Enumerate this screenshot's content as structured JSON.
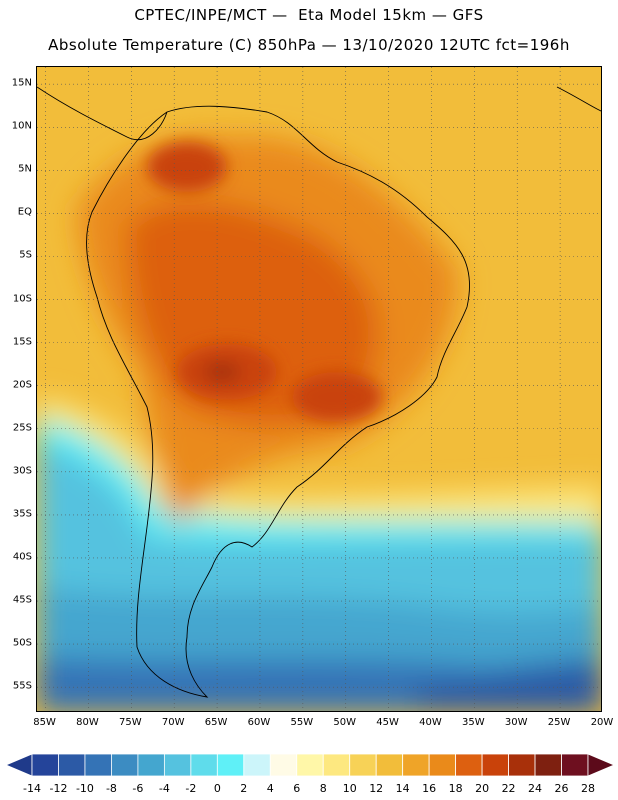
{
  "header": {
    "title_line1": "CPTEC/INPE/MCT —  Eta Model 15km — GFS",
    "title_line2": "Absolute Temperature (C) 850hPa — 13/10/2020 12UTC fct=196h"
  },
  "map": {
    "lat_labels": [
      "15N",
      "10N",
      "5N",
      "EQ",
      "5S",
      "10S",
      "15S",
      "20S",
      "25S",
      "30S",
      "35S",
      "40S",
      "45S",
      "50S",
      "55S"
    ],
    "lat_values": [
      15,
      10,
      5,
      0,
      -5,
      -10,
      -15,
      -20,
      -25,
      -30,
      -35,
      -40,
      -45,
      -50,
      -55
    ],
    "lon_labels": [
      "85W",
      "80W",
      "75W",
      "70W",
      "65W",
      "60W",
      "55W",
      "50W",
      "45W",
      "40W",
      "35W",
      "30W",
      "25W",
      "20W"
    ],
    "lon_values": [
      -85,
      -80,
      -75,
      -70,
      -65,
      -60,
      -55,
      -50,
      -45,
      -40,
      -35,
      -30,
      -25,
      -20
    ],
    "lon_range": [
      -86,
      -20
    ],
    "lat_range": [
      -58,
      17
    ],
    "gridlines": "dotted"
  },
  "colorbar": {
    "labels": [
      "-14",
      "-12",
      "-10",
      "-8",
      "-6",
      "-4",
      "-2",
      "0",
      "2",
      "4",
      "6",
      "8",
      "10",
      "12",
      "14",
      "16",
      "18",
      "20",
      "22",
      "24",
      "26",
      "28"
    ],
    "values": [
      -14,
      -12,
      -10,
      -8,
      -6,
      -4,
      -2,
      0,
      2,
      4,
      6,
      8,
      10,
      12,
      14,
      16,
      18,
      20,
      22,
      24,
      26,
      28
    ],
    "colors": [
      "#2b4a9a",
      "#24449a",
      "#2c5aa6",
      "#3473b6",
      "#3c8cc2",
      "#44a6cf",
      "#55c2df",
      "#5fdceb",
      "#5ff0f7",
      "#ccf5fa",
      "#fffbe6",
      "#fff7a8",
      "#fde880",
      "#f7d257",
      "#f2bd3a",
      "#efa428",
      "#ea8a1a",
      "#dd6010",
      "#c9420a",
      "#a8300a",
      "#7e2010",
      "#6e0f1f"
    ],
    "extend_low_color": "#1f3a8a",
    "extend_high_color": "#5c0a1a"
  }
}
